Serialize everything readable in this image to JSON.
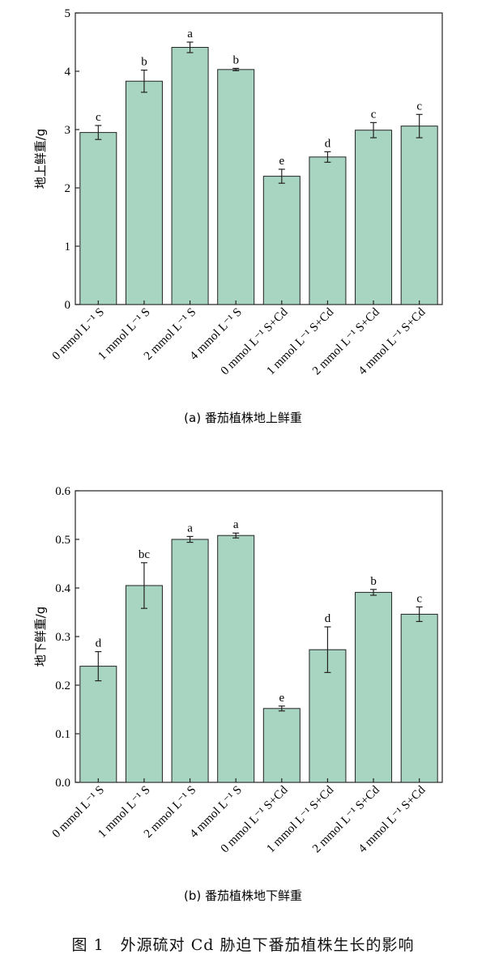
{
  "figure_caption": "图 1　外源硫对 Cd 胁迫下番茄植株生长的影响",
  "colors": {
    "bar_fill": "#a8d5c2",
    "bar_stroke": "#222222",
    "axis": "#222222"
  },
  "chart_data": [
    {
      "type": "bar",
      "subtitle": "(a) 番茄植株地上鲜重",
      "ylabel": "地上鲜重/g",
      "ylim": [
        0,
        5
      ],
      "yticks": [
        "0",
        "1",
        "2",
        "3",
        "4",
        "5"
      ],
      "categories": [
        "0 mmol L⁻¹ S",
        "1 mmol L⁻¹ S",
        "2 mmol L⁻¹ S",
        "4 mmol L⁻¹ S",
        "0 mmol L⁻¹ S+Cd",
        "1 mmol L⁻¹ S+Cd",
        "2 mmol L⁻¹ S+Cd",
        "4 mmol L⁻¹ S+Cd"
      ],
      "values": [
        2.95,
        3.83,
        4.41,
        4.03,
        2.2,
        2.53,
        2.99,
        3.06
      ],
      "errors": [
        0.12,
        0.19,
        0.09,
        0.02,
        0.12,
        0.09,
        0.13,
        0.2
      ],
      "letters": [
        "c",
        "b",
        "a",
        "b",
        "e",
        "d",
        "c",
        "c"
      ]
    },
    {
      "type": "bar",
      "subtitle": "(b) 番茄植株地下鲜重",
      "ylabel": "地下鲜重/g",
      "ylim": [
        0,
        0.6
      ],
      "yticks": [
        "0.0",
        "0.1",
        "0.2",
        "0.3",
        "0.4",
        "0.5",
        "0.6"
      ],
      "categories": [
        "0 mmol L⁻¹ S",
        "1 mmol L⁻¹ S",
        "2 mmol L⁻¹ S",
        "4 mmol L⁻¹ S",
        "0 mmol L⁻¹ S+Cd",
        "1 mmol L⁻¹ S+Cd",
        "2 mmol L⁻¹ S+Cd",
        "4 mmol L⁻¹ S+Cd"
      ],
      "values": [
        0.239,
        0.405,
        0.5,
        0.508,
        0.152,
        0.273,
        0.391,
        0.346
      ],
      "errors": [
        0.03,
        0.047,
        0.006,
        0.005,
        0.005,
        0.047,
        0.006,
        0.015
      ],
      "letters": [
        "d",
        "bc",
        "a",
        "a",
        "e",
        "d",
        "b",
        "c"
      ]
    }
  ]
}
